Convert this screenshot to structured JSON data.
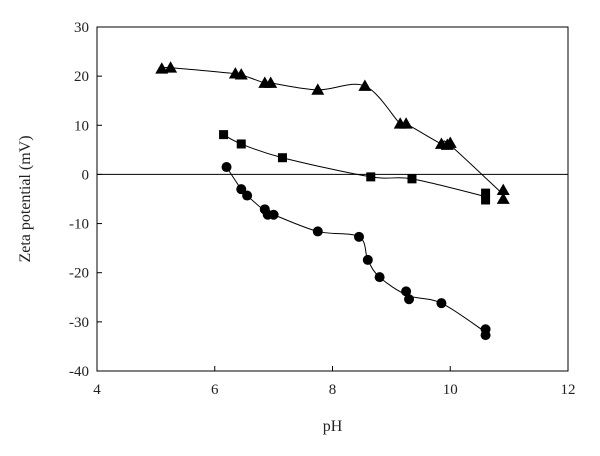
{
  "chart_data": {
    "type": "scatter",
    "xlabel": "pH",
    "ylabel": "Zeta potential (mV)",
    "xlim": [
      4,
      12
    ],
    "ylim": [
      -40,
      30
    ],
    "x_ticks": [
      4,
      6,
      8,
      10,
      12
    ],
    "y_ticks": [
      30,
      20,
      10,
      0,
      -10,
      -20,
      -30,
      -40
    ],
    "zero_line": true,
    "grid": false,
    "series": [
      {
        "marker": "triangle",
        "points": [
          [
            5.1,
            21.5
          ],
          [
            5.25,
            21.7
          ],
          [
            6.35,
            20.5
          ],
          [
            6.45,
            20.3
          ],
          [
            6.85,
            18.6
          ],
          [
            6.95,
            18.6
          ],
          [
            7.75,
            17.2
          ],
          [
            8.55,
            18.0
          ],
          [
            9.15,
            10.3
          ],
          [
            9.25,
            10.3
          ],
          [
            9.85,
            6.2
          ],
          [
            9.95,
            6.0
          ],
          [
            10.0,
            6.4
          ],
          [
            10.9,
            -3.2
          ],
          [
            10.9,
            -5.0
          ]
        ]
      },
      {
        "marker": "square",
        "points": [
          [
            6.15,
            8.1
          ],
          [
            6.45,
            6.2
          ],
          [
            7.15,
            3.4
          ],
          [
            8.65,
            -0.5
          ],
          [
            9.35,
            -0.9
          ],
          [
            10.6,
            -3.8
          ],
          [
            10.6,
            -5.2
          ]
        ]
      },
      {
        "marker": "circle",
        "points": [
          [
            6.2,
            1.5
          ],
          [
            6.45,
            -3.0
          ],
          [
            6.55,
            -4.3
          ],
          [
            6.85,
            -7.1
          ],
          [
            6.9,
            -8.2
          ],
          [
            7.0,
            -8.2
          ],
          [
            7.75,
            -11.6
          ],
          [
            8.45,
            -12.7
          ],
          [
            8.6,
            -17.4
          ],
          [
            8.8,
            -20.9
          ],
          [
            9.25,
            -23.8
          ],
          [
            9.3,
            -25.4
          ],
          [
            9.85,
            -26.2
          ],
          [
            10.6,
            -31.5
          ],
          [
            10.6,
            -32.7
          ]
        ]
      }
    ]
  }
}
